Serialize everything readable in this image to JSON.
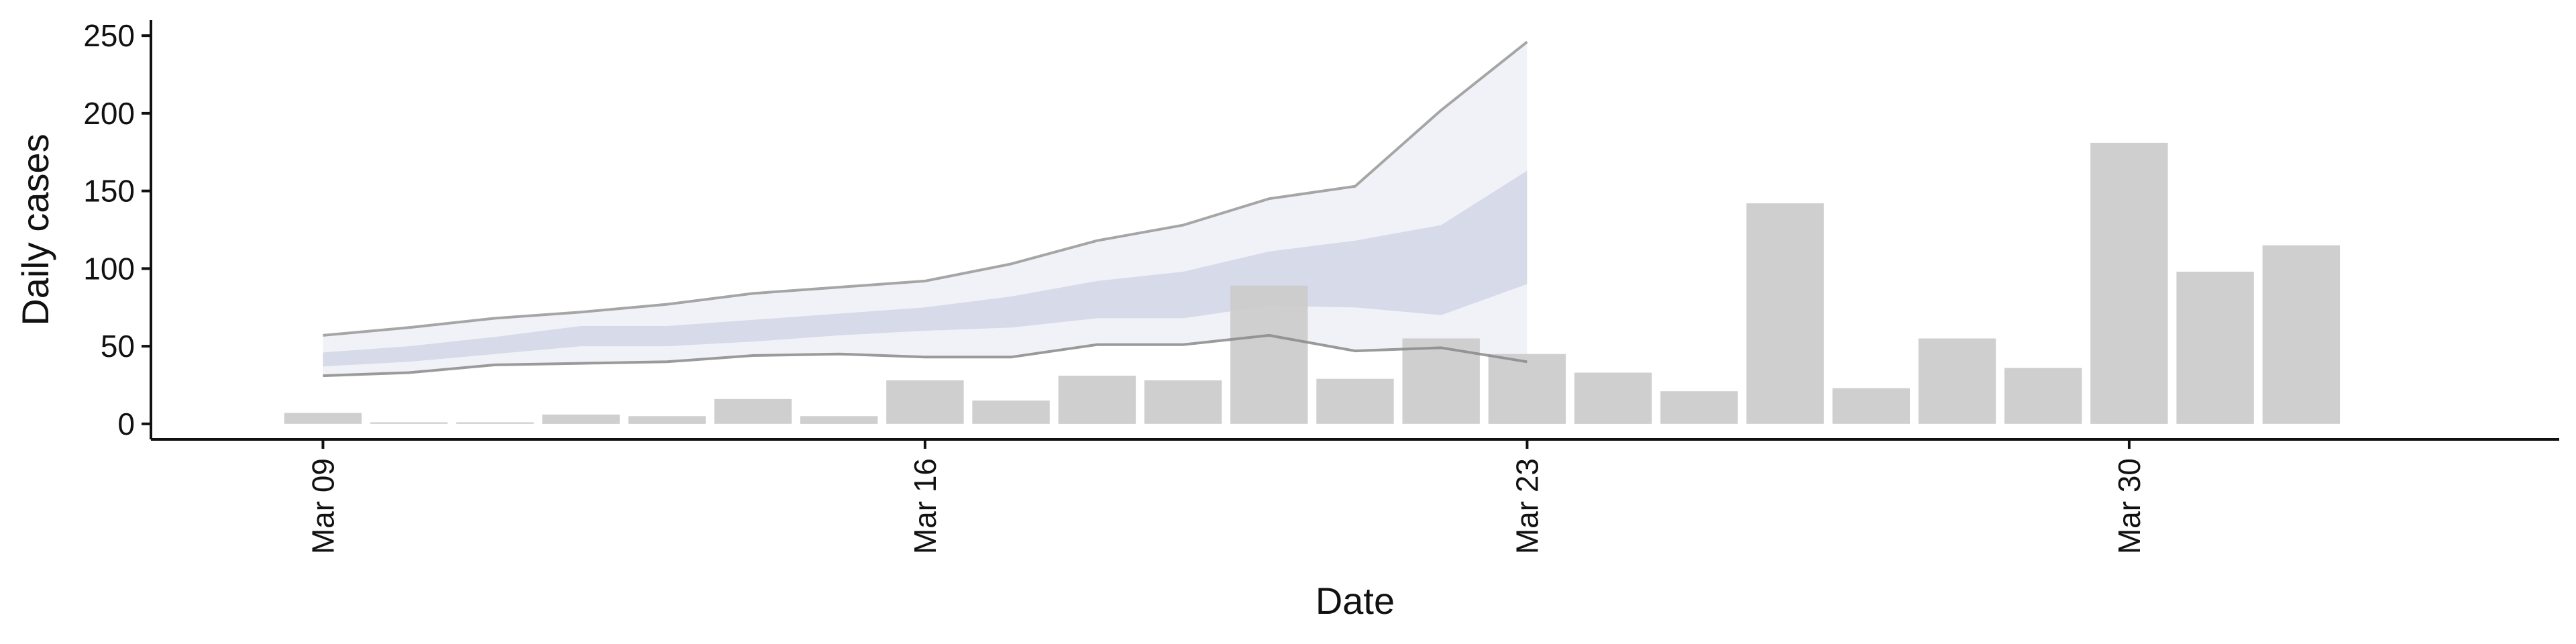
{
  "chart_data": {
    "type": "bar",
    "xlabel": "Date",
    "ylabel": "Daily cases",
    "ylim": [
      -10,
      260
    ],
    "yticks": [
      0,
      50,
      100,
      150,
      200,
      250
    ],
    "xticks": [
      {
        "date": "2020-03-09",
        "label": "Mar 09"
      },
      {
        "date": "2020-03-16",
        "label": "Mar 16"
      },
      {
        "date": "2020-03-23",
        "label": "Mar 23"
      },
      {
        "date": "2020-03-30",
        "label": "Mar 30"
      }
    ],
    "xlim": [
      "2020-03-07",
      "2020-04-04"
    ],
    "grid": false,
    "legend": "none",
    "bars": [
      {
        "date": "2020-03-09",
        "value": 7
      },
      {
        "date": "2020-03-10",
        "value": 1
      },
      {
        "date": "2020-03-11",
        "value": 1
      },
      {
        "date": "2020-03-12",
        "value": 6
      },
      {
        "date": "2020-03-13",
        "value": 5
      },
      {
        "date": "2020-03-14",
        "value": 16
      },
      {
        "date": "2020-03-15",
        "value": 5
      },
      {
        "date": "2020-03-16",
        "value": 28
      },
      {
        "date": "2020-03-17",
        "value": 15
      },
      {
        "date": "2020-03-18",
        "value": 31
      },
      {
        "date": "2020-03-19",
        "value": 28
      },
      {
        "date": "2020-03-20",
        "value": 89
      },
      {
        "date": "2020-03-21",
        "value": 29
      },
      {
        "date": "2020-03-22",
        "value": 55
      },
      {
        "date": "2020-03-23",
        "value": 45
      },
      {
        "date": "2020-03-24",
        "value": 33
      },
      {
        "date": "2020-03-25",
        "value": 21
      },
      {
        "date": "2020-03-26",
        "value": 142
      },
      {
        "date": "2020-03-27",
        "value": 23
      },
      {
        "date": "2020-03-28",
        "value": 55
      },
      {
        "date": "2020-03-29",
        "value": 36
      },
      {
        "date": "2020-03-30",
        "value": 181
      },
      {
        "date": "2020-03-31",
        "value": 98
      },
      {
        "date": "2020-04-01",
        "value": 115
      }
    ],
    "estimate_dates": [
      "2020-03-09",
      "2020-03-10",
      "2020-03-11",
      "2020-03-12",
      "2020-03-13",
      "2020-03-14",
      "2020-03-15",
      "2020-03-16",
      "2020-03-17",
      "2020-03-18",
      "2020-03-19",
      "2020-03-20",
      "2020-03-21",
      "2020-03-22",
      "2020-03-23"
    ],
    "estimate_upper_90": [
      57,
      62,
      68,
      72,
      77,
      84,
      88,
      92,
      103,
      118,
      128,
      145,
      153,
      202,
      246
    ],
    "estimate_upper_50": [
      46,
      50,
      56,
      63,
      63,
      67,
      71,
      75,
      82,
      92,
      98,
      111,
      118,
      128,
      163
    ],
    "estimate_lower_50": [
      37,
      40,
      45,
      50,
      50,
      53,
      57,
      60,
      62,
      68,
      68,
      76,
      75,
      70,
      90
    ],
    "estimate_lower_90": [
      31,
      33,
      38,
      39,
      40,
      44,
      45,
      43,
      43,
      51,
      51,
      57,
      47,
      49,
      40
    ],
    "colors": {
      "bar": "#cccccc",
      "band_outer": "#eceef5",
      "band_inner": "#cbd0e2",
      "bound_line": "#8a8a8a",
      "axis": "#111111"
    }
  }
}
